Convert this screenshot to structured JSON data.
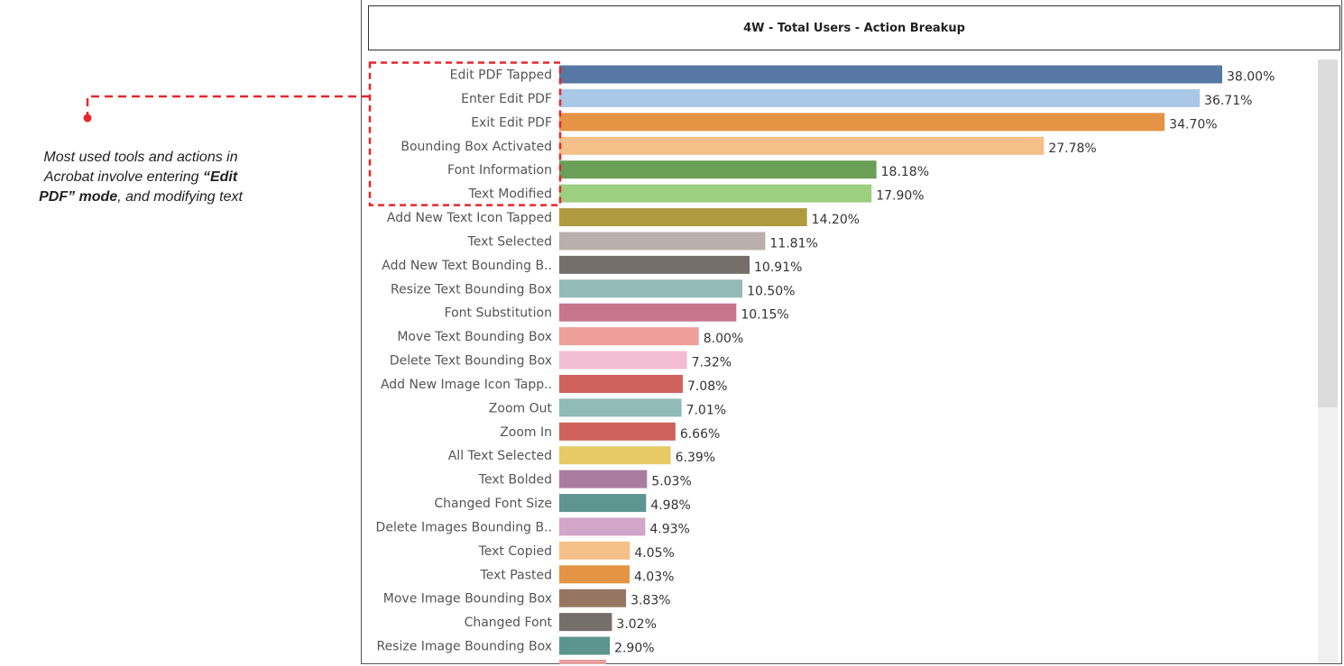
{
  "annotation": {
    "text_plain_1": "Most used tools and actions in",
    "text_plain_2": "Acrobat involve entering ",
    "text_bold_1": "“Edit",
    "text_bold_2": "PDF” mode",
    "text_plain_3": ", and modifying text",
    "callout_color": "#e8262a"
  },
  "chart_data": {
    "type": "bar",
    "orientation": "horizontal",
    "title": "4W - Total Users - Action Breakup",
    "xlabel": "",
    "ylabel": "",
    "xlim": [
      0,
      38
    ],
    "grid": false,
    "categories": [
      "Edit PDF Tapped",
      "Enter Edit PDF",
      "Exit Edit PDF",
      "Bounding Box Activated",
      "Font Information",
      "Text Modified",
      "Add New Text Icon Tapped",
      "Text Selected",
      "Add New Text Bounding B..",
      "Resize Text Bounding Box",
      "Font Substitution",
      "Move Text Bounding Box",
      "Delete Text Bounding Box",
      "Add New Image Icon Tapp..",
      "Zoom Out",
      "Zoom In",
      "All Text Selected",
      "Text Bolded",
      "Changed Font Size",
      "Delete Images Bounding B..",
      "Text Copied",
      "Text Pasted",
      "Move Image Bounding Box",
      "Changed Font",
      "Resize Image Bounding Box"
    ],
    "values": [
      38.0,
      36.71,
      34.7,
      27.78,
      18.18,
      17.9,
      14.2,
      11.81,
      10.91,
      10.5,
      10.15,
      8.0,
      7.32,
      7.08,
      7.01,
      6.66,
      6.39,
      5.03,
      4.98,
      4.93,
      4.05,
      4.03,
      3.83,
      3.02,
      2.9
    ],
    "value_labels": [
      "38.00%",
      "36.71%",
      "34.70%",
      "27.78%",
      "18.18%",
      "17.90%",
      "14.20%",
      "11.81%",
      "10.91%",
      "10.50%",
      "10.15%",
      "8.00%",
      "7.32%",
      "7.08%",
      "7.01%",
      "6.66%",
      "6.39%",
      "5.03%",
      "4.98%",
      "4.93%",
      "4.05%",
      "4.03%",
      "3.83%",
      "3.02%",
      "2.90%"
    ],
    "colors": [
      "#5778a4",
      "#a9c8e8",
      "#e49444",
      "#f5c088",
      "#6a9f58",
      "#9ccf7f",
      "#b09a40",
      "#b9b0ab",
      "#766e6b",
      "#94bbb7",
      "#c7748f",
      "#ef9f9a",
      "#f2bdd0",
      "#d1615d",
      "#91bbb6",
      "#d1615d",
      "#e7c966",
      "#a87c9f",
      "#5e958f",
      "#d2a6c8",
      "#f5c088",
      "#e49444",
      "#967662",
      "#766e6b",
      "#5b958d"
    ],
    "highlighted_categories": [
      "Edit PDF Tapped",
      "Enter Edit PDF",
      "Exit Edit PDF",
      "Bounding Box Activated",
      "Font Information",
      "Text Modified"
    ]
  }
}
